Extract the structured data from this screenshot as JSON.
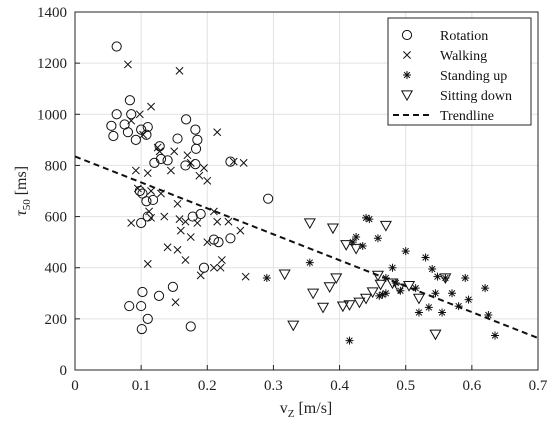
{
  "chart_data": {
    "type": "scatter",
    "title": "",
    "xlabel": "v",
    "xlabel_sub": "Z",
    "xlabel_unit": " [m/s]",
    "ylabel": "τ",
    "ylabel_sub": "50",
    "ylabel_unit": " [ms]",
    "xlim": [
      0,
      0.7
    ],
    "ylim": [
      0,
      1400
    ],
    "x_ticks": [
      "0",
      "0.1",
      "0.2",
      "0.3",
      "0.4",
      "0.5",
      "0.6",
      "0.7"
    ],
    "y_ticks": [
      "0",
      "200",
      "400",
      "600",
      "800",
      "1000",
      "1200",
      "1400"
    ],
    "grid": true,
    "legend_position": "top-right",
    "series": [
      {
        "name": "Rotation",
        "marker": "circle",
        "points": [
          [
            0.063,
            1265
          ],
          [
            0.083,
            1055
          ],
          [
            0.085,
            1000
          ],
          [
            0.063,
            1000
          ],
          [
            0.055,
            955
          ],
          [
            0.075,
            960
          ],
          [
            0.058,
            915
          ],
          [
            0.08,
            930
          ],
          [
            0.092,
            900
          ],
          [
            0.1,
            940
          ],
          [
            0.11,
            950
          ],
          [
            0.108,
            920
          ],
          [
            0.128,
            875
          ],
          [
            0.12,
            810
          ],
          [
            0.13,
            825
          ],
          [
            0.14,
            820
          ],
          [
            0.155,
            905
          ],
          [
            0.168,
            980
          ],
          [
            0.182,
            940
          ],
          [
            0.185,
            900
          ],
          [
            0.183,
            865
          ],
          [
            0.167,
            800
          ],
          [
            0.182,
            805
          ],
          [
            0.235,
            815
          ],
          [
            0.098,
            700
          ],
          [
            0.102,
            690
          ],
          [
            0.108,
            660
          ],
          [
            0.118,
            665
          ],
          [
            0.1,
            575
          ],
          [
            0.11,
            600
          ],
          [
            0.178,
            600
          ],
          [
            0.19,
            610
          ],
          [
            0.21,
            510
          ],
          [
            0.217,
            500
          ],
          [
            0.235,
            515
          ],
          [
            0.195,
            400
          ],
          [
            0.148,
            325
          ],
          [
            0.127,
            290
          ],
          [
            0.102,
            305
          ],
          [
            0.1,
            250
          ],
          [
            0.082,
            250
          ],
          [
            0.11,
            200
          ],
          [
            0.101,
            160
          ],
          [
            0.175,
            170
          ],
          [
            0.292,
            670
          ]
        ]
      },
      {
        "name": "Walking",
        "marker": "x",
        "points": [
          [
            0.08,
            1195
          ],
          [
            0.158,
            1170
          ],
          [
            0.115,
            1030
          ],
          [
            0.098,
            1000
          ],
          [
            0.085,
            975
          ],
          [
            0.103,
            920
          ],
          [
            0.125,
            870
          ],
          [
            0.128,
            855
          ],
          [
            0.15,
            855
          ],
          [
            0.17,
            840
          ],
          [
            0.175,
            810
          ],
          [
            0.145,
            780
          ],
          [
            0.195,
            790
          ],
          [
            0.188,
            760
          ],
          [
            0.2,
            740
          ],
          [
            0.24,
            815
          ],
          [
            0.255,
            810
          ],
          [
            0.215,
            930
          ],
          [
            0.092,
            780
          ],
          [
            0.11,
            770
          ],
          [
            0.095,
            710
          ],
          [
            0.115,
            700
          ],
          [
            0.13,
            690
          ],
          [
            0.155,
            650
          ],
          [
            0.112,
            620
          ],
          [
            0.135,
            600
          ],
          [
            0.158,
            590
          ],
          [
            0.167,
            580
          ],
          [
            0.185,
            575
          ],
          [
            0.21,
            620
          ],
          [
            0.232,
            580
          ],
          [
            0.25,
            545
          ],
          [
            0.16,
            545
          ],
          [
            0.175,
            520
          ],
          [
            0.14,
            480
          ],
          [
            0.155,
            470
          ],
          [
            0.167,
            430
          ],
          [
            0.2,
            500
          ],
          [
            0.21,
            400
          ],
          [
            0.222,
            430
          ],
          [
            0.11,
            415
          ],
          [
            0.115,
            595
          ],
          [
            0.152,
            265
          ],
          [
            0.19,
            370
          ],
          [
            0.258,
            365
          ],
          [
            0.085,
            575
          ],
          [
            0.22,
            400
          ],
          [
            0.215,
            580
          ]
        ]
      },
      {
        "name": "Standing up",
        "marker": "asterisk",
        "points": [
          [
            0.29,
            360
          ],
          [
            0.355,
            420
          ],
          [
            0.415,
            115
          ],
          [
            0.42,
            500
          ],
          [
            0.425,
            520
          ],
          [
            0.44,
            595
          ],
          [
            0.445,
            590
          ],
          [
            0.435,
            485
          ],
          [
            0.458,
            515
          ],
          [
            0.47,
            360
          ],
          [
            0.465,
            295
          ],
          [
            0.47,
            300
          ],
          [
            0.46,
            290
          ],
          [
            0.48,
            400
          ],
          [
            0.485,
            340
          ],
          [
            0.492,
            310
          ],
          [
            0.5,
            465
          ],
          [
            0.515,
            320
          ],
          [
            0.52,
            225
          ],
          [
            0.53,
            440
          ],
          [
            0.535,
            245
          ],
          [
            0.54,
            395
          ],
          [
            0.548,
            365
          ],
          [
            0.555,
            225
          ],
          [
            0.56,
            360
          ],
          [
            0.57,
            300
          ],
          [
            0.58,
            250
          ],
          [
            0.59,
            360
          ],
          [
            0.595,
            275
          ],
          [
            0.62,
            320
          ],
          [
            0.625,
            215
          ],
          [
            0.635,
            135
          ],
          [
            0.545,
            300
          ]
        ]
      },
      {
        "name": "Sitting down",
        "marker": "triangle-down",
        "points": [
          [
            0.317,
            375
          ],
          [
            0.33,
            175
          ],
          [
            0.355,
            575
          ],
          [
            0.36,
            300
          ],
          [
            0.375,
            245
          ],
          [
            0.385,
            325
          ],
          [
            0.39,
            555
          ],
          [
            0.395,
            360
          ],
          [
            0.405,
            250
          ],
          [
            0.41,
            490
          ],
          [
            0.415,
            255
          ],
          [
            0.425,
            475
          ],
          [
            0.43,
            265
          ],
          [
            0.44,
            280
          ],
          [
            0.45,
            305
          ],
          [
            0.458,
            370
          ],
          [
            0.462,
            335
          ],
          [
            0.47,
            565
          ],
          [
            0.48,
            340
          ],
          [
            0.49,
            320
          ],
          [
            0.505,
            330
          ],
          [
            0.52,
            280
          ],
          [
            0.545,
            140
          ],
          [
            0.56,
            360
          ]
        ]
      }
    ],
    "trendline": {
      "name": "Trendline",
      "style": "dashed",
      "x": [
        0,
        0.7
      ],
      "y": [
        835,
        125
      ]
    }
  }
}
